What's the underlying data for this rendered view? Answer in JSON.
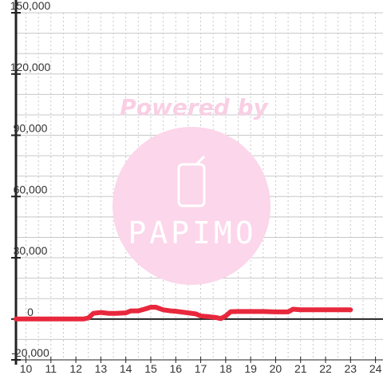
{
  "chart_data": {
    "type": "line",
    "title": "",
    "xlabel": "",
    "ylabel": "",
    "xlim": [
      9.6,
      24.3
    ],
    "ylim": [
      -20000,
      150000
    ],
    "x_ticks": [
      10,
      11,
      12,
      13,
      14,
      15,
      16,
      17,
      18,
      19,
      20,
      21,
      22,
      23,
      24
    ],
    "x_tick_labels": [
      "10",
      "11",
      "12",
      "13",
      "14",
      "15",
      "16",
      "17",
      "18",
      "19",
      "20",
      "21",
      "22",
      "23",
      "24"
    ],
    "y_ticks": [
      -20000,
      0,
      30000,
      60000,
      90000,
      120000,
      150000
    ],
    "y_tick_labels": [
      "-20,000",
      "0",
      "30,000",
      "60,000",
      "90,000",
      "120,000",
      "150,000"
    ],
    "y_minor_step": 10000,
    "x_minor_step": 0.5,
    "grid": true,
    "series": [
      {
        "color": "#e8283c",
        "x": [
          9.6,
          10,
          11,
          12,
          12.3,
          12.5,
          12.7,
          13.0,
          13.3,
          13.6,
          14.0,
          14.2,
          14.5,
          14.8,
          15.0,
          15.2,
          15.5,
          15.8,
          16.0,
          16.5,
          16.8,
          17.0,
          17.3,
          17.6,
          17.8,
          18.0,
          18.2,
          18.5,
          19.0,
          19.5,
          20.0,
          20.5,
          20.7,
          21.0,
          21.5,
          22.0,
          22.5,
          23.0
        ],
        "y": [
          0,
          0,
          0,
          0,
          0,
          500,
          2800,
          3200,
          2800,
          2800,
          3000,
          4000,
          4000,
          5000,
          5800,
          5800,
          4500,
          4000,
          3800,
          3000,
          2500,
          1500,
          1200,
          800,
          200,
          1500,
          3600,
          3700,
          3700,
          3700,
          3500,
          3500,
          4800,
          4500,
          4500,
          4500,
          4500,
          4500
        ]
      }
    ]
  },
  "watermark": {
    "text": "Powered by",
    "logo": "PAPIMO",
    "color": "#f9d3e8"
  }
}
